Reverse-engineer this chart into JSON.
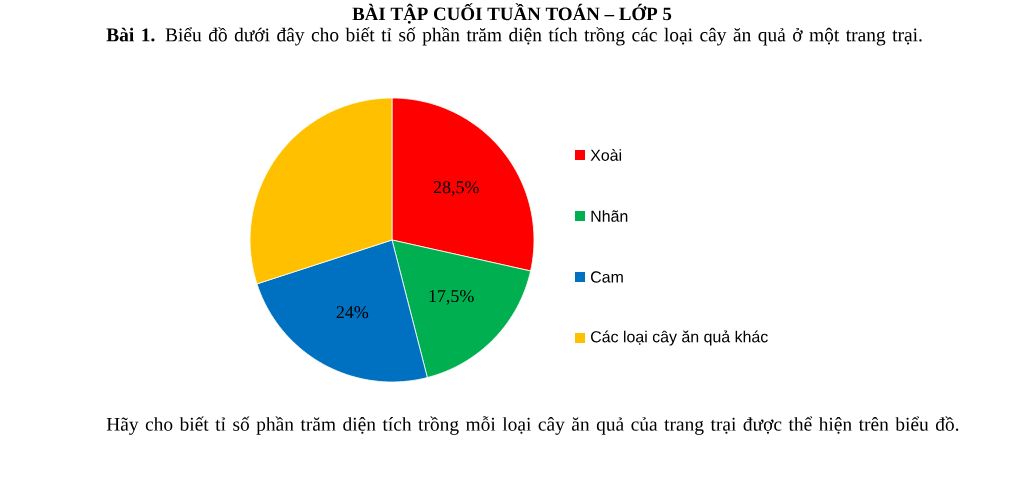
{
  "chart_data": {
    "type": "pie",
    "title": "BÀI TẬP CUỐI TUẦN TOÁN – LỚP 5",
    "subtitle": "**Bài 1.** Biểu đồ dưới đây cho biết tỉ số phần trăm diện tích trồng các loại cây ăn quả ở một trang trại.",
    "categories": [
      "Xoài",
      "Nhãn",
      "Cam",
      "Các loại cây ăn quả khác"
    ],
    "values": [
      28.5,
      17.5,
      24,
      30
    ],
    "value_labels": [
      "28,5%",
      "17,5%",
      "24%",
      null
    ],
    "colors": [
      "#ff0000",
      "#00b050",
      "#0070c0",
      "#ffc000"
    ],
    "legend": "right",
    "annotations": [
      "Hãy cho biết tỉ số phần trăm diện tích trồng mỗi loại cây ăn quả của trang trại được thể hiện trên biểu đồ."
    ]
  }
}
